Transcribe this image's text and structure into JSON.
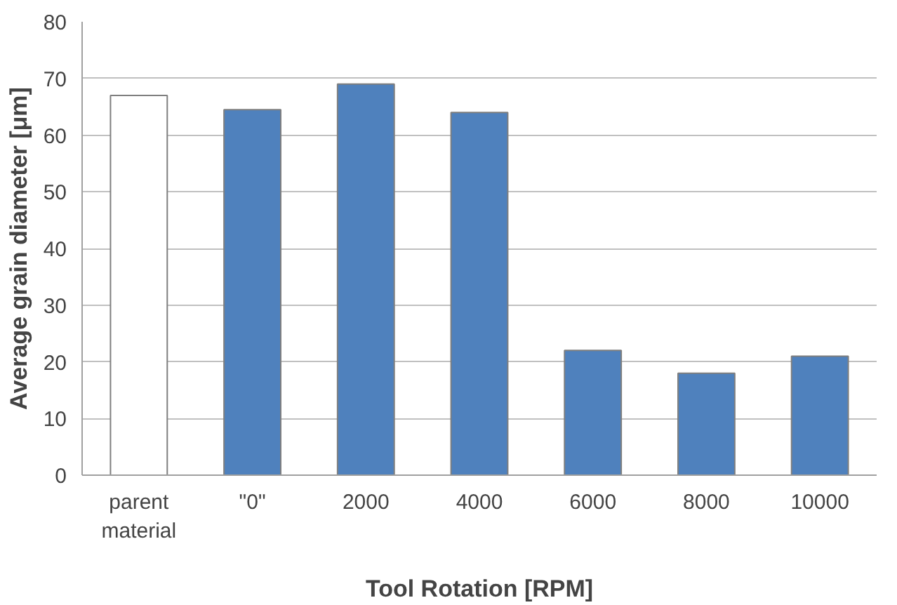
{
  "chart_data": {
    "type": "bar",
    "xlabel": "Tool Rotation [RPM]",
    "ylabel": "Average grain diameter [μm]",
    "categories": [
      "parent\nmaterial",
      "\"0\"",
      "2000",
      "4000",
      "6000",
      "8000",
      "10000"
    ],
    "values": [
      67,
      64.5,
      69,
      64,
      22,
      18,
      21
    ],
    "colors": [
      "#ffffff",
      "#4f81bd",
      "#4f81bd",
      "#4f81bd",
      "#4f81bd",
      "#4f81bd",
      "#4f81bd"
    ],
    "ylim": [
      0,
      80
    ],
    "yticks": [
      0,
      10,
      20,
      30,
      40,
      50,
      60,
      70,
      80
    ],
    "grid": "y"
  }
}
